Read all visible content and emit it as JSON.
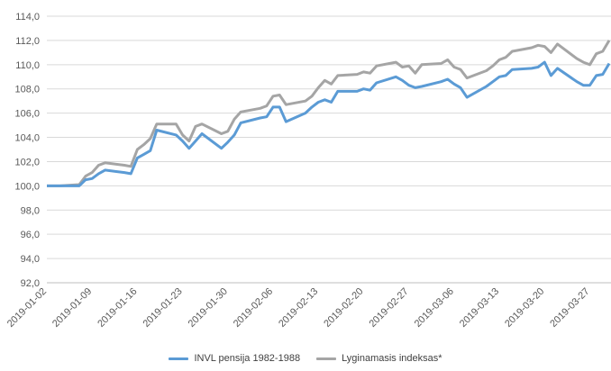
{
  "chart_data": {
    "type": "line",
    "title": "",
    "xlabel": "",
    "ylabel": "",
    "ylim": [
      92,
      114
    ],
    "y_ticks": [
      "92,0",
      "94,0",
      "96,0",
      "98,0",
      "100,0",
      "102,0",
      "104,0",
      "106,0",
      "108,0",
      "110,0",
      "112,0",
      "114,0"
    ],
    "y_tick_values": [
      92,
      94,
      96,
      98,
      100,
      102,
      104,
      106,
      108,
      110,
      112,
      114
    ],
    "x_ticks": [
      "2019-01-02",
      "2019-01-09",
      "2019-01-16",
      "2019-01-23",
      "2019-01-30",
      "2019-02-06",
      "2019-02-13",
      "2019-02-20",
      "2019-02-27",
      "2019-03-06",
      "2019-03-13",
      "2019-03-20",
      "2019-03-27"
    ],
    "gridlines": "horizontal",
    "legend_position": "bottom",
    "series": [
      {
        "name": "INVL pensija 1982-1988",
        "color": "#5b9bd5",
        "points": [
          [
            "2019-01-02",
            100.0
          ],
          [
            "2019-01-03",
            100.0
          ],
          [
            "2019-01-04",
            100.0
          ],
          [
            "2019-01-07",
            100.0
          ],
          [
            "2019-01-08",
            100.5
          ],
          [
            "2019-01-09",
            100.6
          ],
          [
            "2019-01-10",
            101.0
          ],
          [
            "2019-01-11",
            101.3
          ],
          [
            "2019-01-14",
            101.1
          ],
          [
            "2019-01-15",
            101.0
          ],
          [
            "2019-01-16",
            102.3
          ],
          [
            "2019-01-17",
            102.6
          ],
          [
            "2019-01-18",
            102.9
          ],
          [
            "2019-01-19",
            104.6
          ],
          [
            "2019-01-22",
            104.2
          ],
          [
            "2019-01-23",
            103.7
          ],
          [
            "2019-01-24",
            103.1
          ],
          [
            "2019-01-25",
            103.7
          ],
          [
            "2019-01-26",
            104.3
          ],
          [
            "2019-01-29",
            103.1
          ],
          [
            "2019-01-30",
            103.6
          ],
          [
            "2019-01-31",
            104.2
          ],
          [
            "2019-02-01",
            105.2
          ],
          [
            "2019-02-04",
            105.6
          ],
          [
            "2019-02-05",
            105.7
          ],
          [
            "2019-02-06",
            106.5
          ],
          [
            "2019-02-07",
            106.5
          ],
          [
            "2019-02-08",
            105.3
          ],
          [
            "2019-02-11",
            106.0
          ],
          [
            "2019-02-12",
            106.5
          ],
          [
            "2019-02-13",
            106.9
          ],
          [
            "2019-02-14",
            107.1
          ],
          [
            "2019-02-15",
            106.9
          ],
          [
            "2019-02-16",
            107.8
          ],
          [
            "2019-02-19",
            107.8
          ],
          [
            "2019-02-20",
            108.0
          ],
          [
            "2019-02-21",
            107.9
          ],
          [
            "2019-02-22",
            108.5
          ],
          [
            "2019-02-25",
            109.0
          ],
          [
            "2019-02-26",
            108.7
          ],
          [
            "2019-02-27",
            108.3
          ],
          [
            "2019-02-28",
            108.1
          ],
          [
            "2019-03-01",
            108.2
          ],
          [
            "2019-03-04",
            108.6
          ],
          [
            "2019-03-05",
            108.8
          ],
          [
            "2019-03-06",
            108.4
          ],
          [
            "2019-03-07",
            108.1
          ],
          [
            "2019-03-08",
            107.3
          ],
          [
            "2019-03-11",
            108.2
          ],
          [
            "2019-03-12",
            108.6
          ],
          [
            "2019-03-13",
            109.0
          ],
          [
            "2019-03-14",
            109.1
          ],
          [
            "2019-03-15",
            109.6
          ],
          [
            "2019-03-18",
            109.7
          ],
          [
            "2019-03-19",
            109.8
          ],
          [
            "2019-03-20",
            110.2
          ],
          [
            "2019-03-21",
            109.1
          ],
          [
            "2019-03-22",
            109.7
          ],
          [
            "2019-03-25",
            108.6
          ],
          [
            "2019-03-26",
            108.3
          ],
          [
            "2019-03-27",
            108.3
          ],
          [
            "2019-03-28",
            109.1
          ],
          [
            "2019-03-29",
            109.2
          ],
          [
            "2019-03-30",
            110.1
          ]
        ]
      },
      {
        "name": "Lyginamasis indeksas*",
        "color": "#a5a5a5",
        "points": [
          [
            "2019-01-02",
            100.0
          ],
          [
            "2019-01-03",
            100.0
          ],
          [
            "2019-01-04",
            100.0
          ],
          [
            "2019-01-07",
            100.1
          ],
          [
            "2019-01-08",
            100.8
          ],
          [
            "2019-01-09",
            101.1
          ],
          [
            "2019-01-10",
            101.7
          ],
          [
            "2019-01-11",
            101.9
          ],
          [
            "2019-01-14",
            101.7
          ],
          [
            "2019-01-15",
            101.6
          ],
          [
            "2019-01-16",
            103.0
          ],
          [
            "2019-01-17",
            103.4
          ],
          [
            "2019-01-18",
            103.9
          ],
          [
            "2019-01-19",
            105.1
          ],
          [
            "2019-01-22",
            105.1
          ],
          [
            "2019-01-23",
            104.2
          ],
          [
            "2019-01-24",
            103.7
          ],
          [
            "2019-01-25",
            104.9
          ],
          [
            "2019-01-26",
            105.1
          ],
          [
            "2019-01-29",
            104.3
          ],
          [
            "2019-01-30",
            104.5
          ],
          [
            "2019-01-31",
            105.5
          ],
          [
            "2019-02-01",
            106.1
          ],
          [
            "2019-02-04",
            106.4
          ],
          [
            "2019-02-05",
            106.6
          ],
          [
            "2019-02-06",
            107.4
          ],
          [
            "2019-02-07",
            107.5
          ],
          [
            "2019-02-08",
            106.7
          ],
          [
            "2019-02-11",
            107.0
          ],
          [
            "2019-02-12",
            107.4
          ],
          [
            "2019-02-13",
            108.1
          ],
          [
            "2019-02-14",
            108.7
          ],
          [
            "2019-02-15",
            108.4
          ],
          [
            "2019-02-16",
            109.1
          ],
          [
            "2019-02-19",
            109.2
          ],
          [
            "2019-02-20",
            109.4
          ],
          [
            "2019-02-21",
            109.3
          ],
          [
            "2019-02-22",
            109.9
          ],
          [
            "2019-02-25",
            110.2
          ],
          [
            "2019-02-26",
            109.8
          ],
          [
            "2019-02-27",
            109.9
          ],
          [
            "2019-02-28",
            109.3
          ],
          [
            "2019-03-01",
            110.0
          ],
          [
            "2019-03-04",
            110.1
          ],
          [
            "2019-03-05",
            110.4
          ],
          [
            "2019-03-06",
            109.8
          ],
          [
            "2019-03-07",
            109.6
          ],
          [
            "2019-03-08",
            108.9
          ],
          [
            "2019-03-11",
            109.5
          ],
          [
            "2019-03-12",
            109.9
          ],
          [
            "2019-03-13",
            110.4
          ],
          [
            "2019-03-14",
            110.6
          ],
          [
            "2019-03-15",
            111.1
          ],
          [
            "2019-03-18",
            111.4
          ],
          [
            "2019-03-19",
            111.6
          ],
          [
            "2019-03-20",
            111.5
          ],
          [
            "2019-03-21",
            111.0
          ],
          [
            "2019-03-22",
            111.7
          ],
          [
            "2019-03-25",
            110.5
          ],
          [
            "2019-03-26",
            110.2
          ],
          [
            "2019-03-27",
            110.0
          ],
          [
            "2019-03-28",
            110.9
          ],
          [
            "2019-03-29",
            111.1
          ],
          [
            "2019-03-30",
            112.0
          ]
        ]
      }
    ]
  }
}
